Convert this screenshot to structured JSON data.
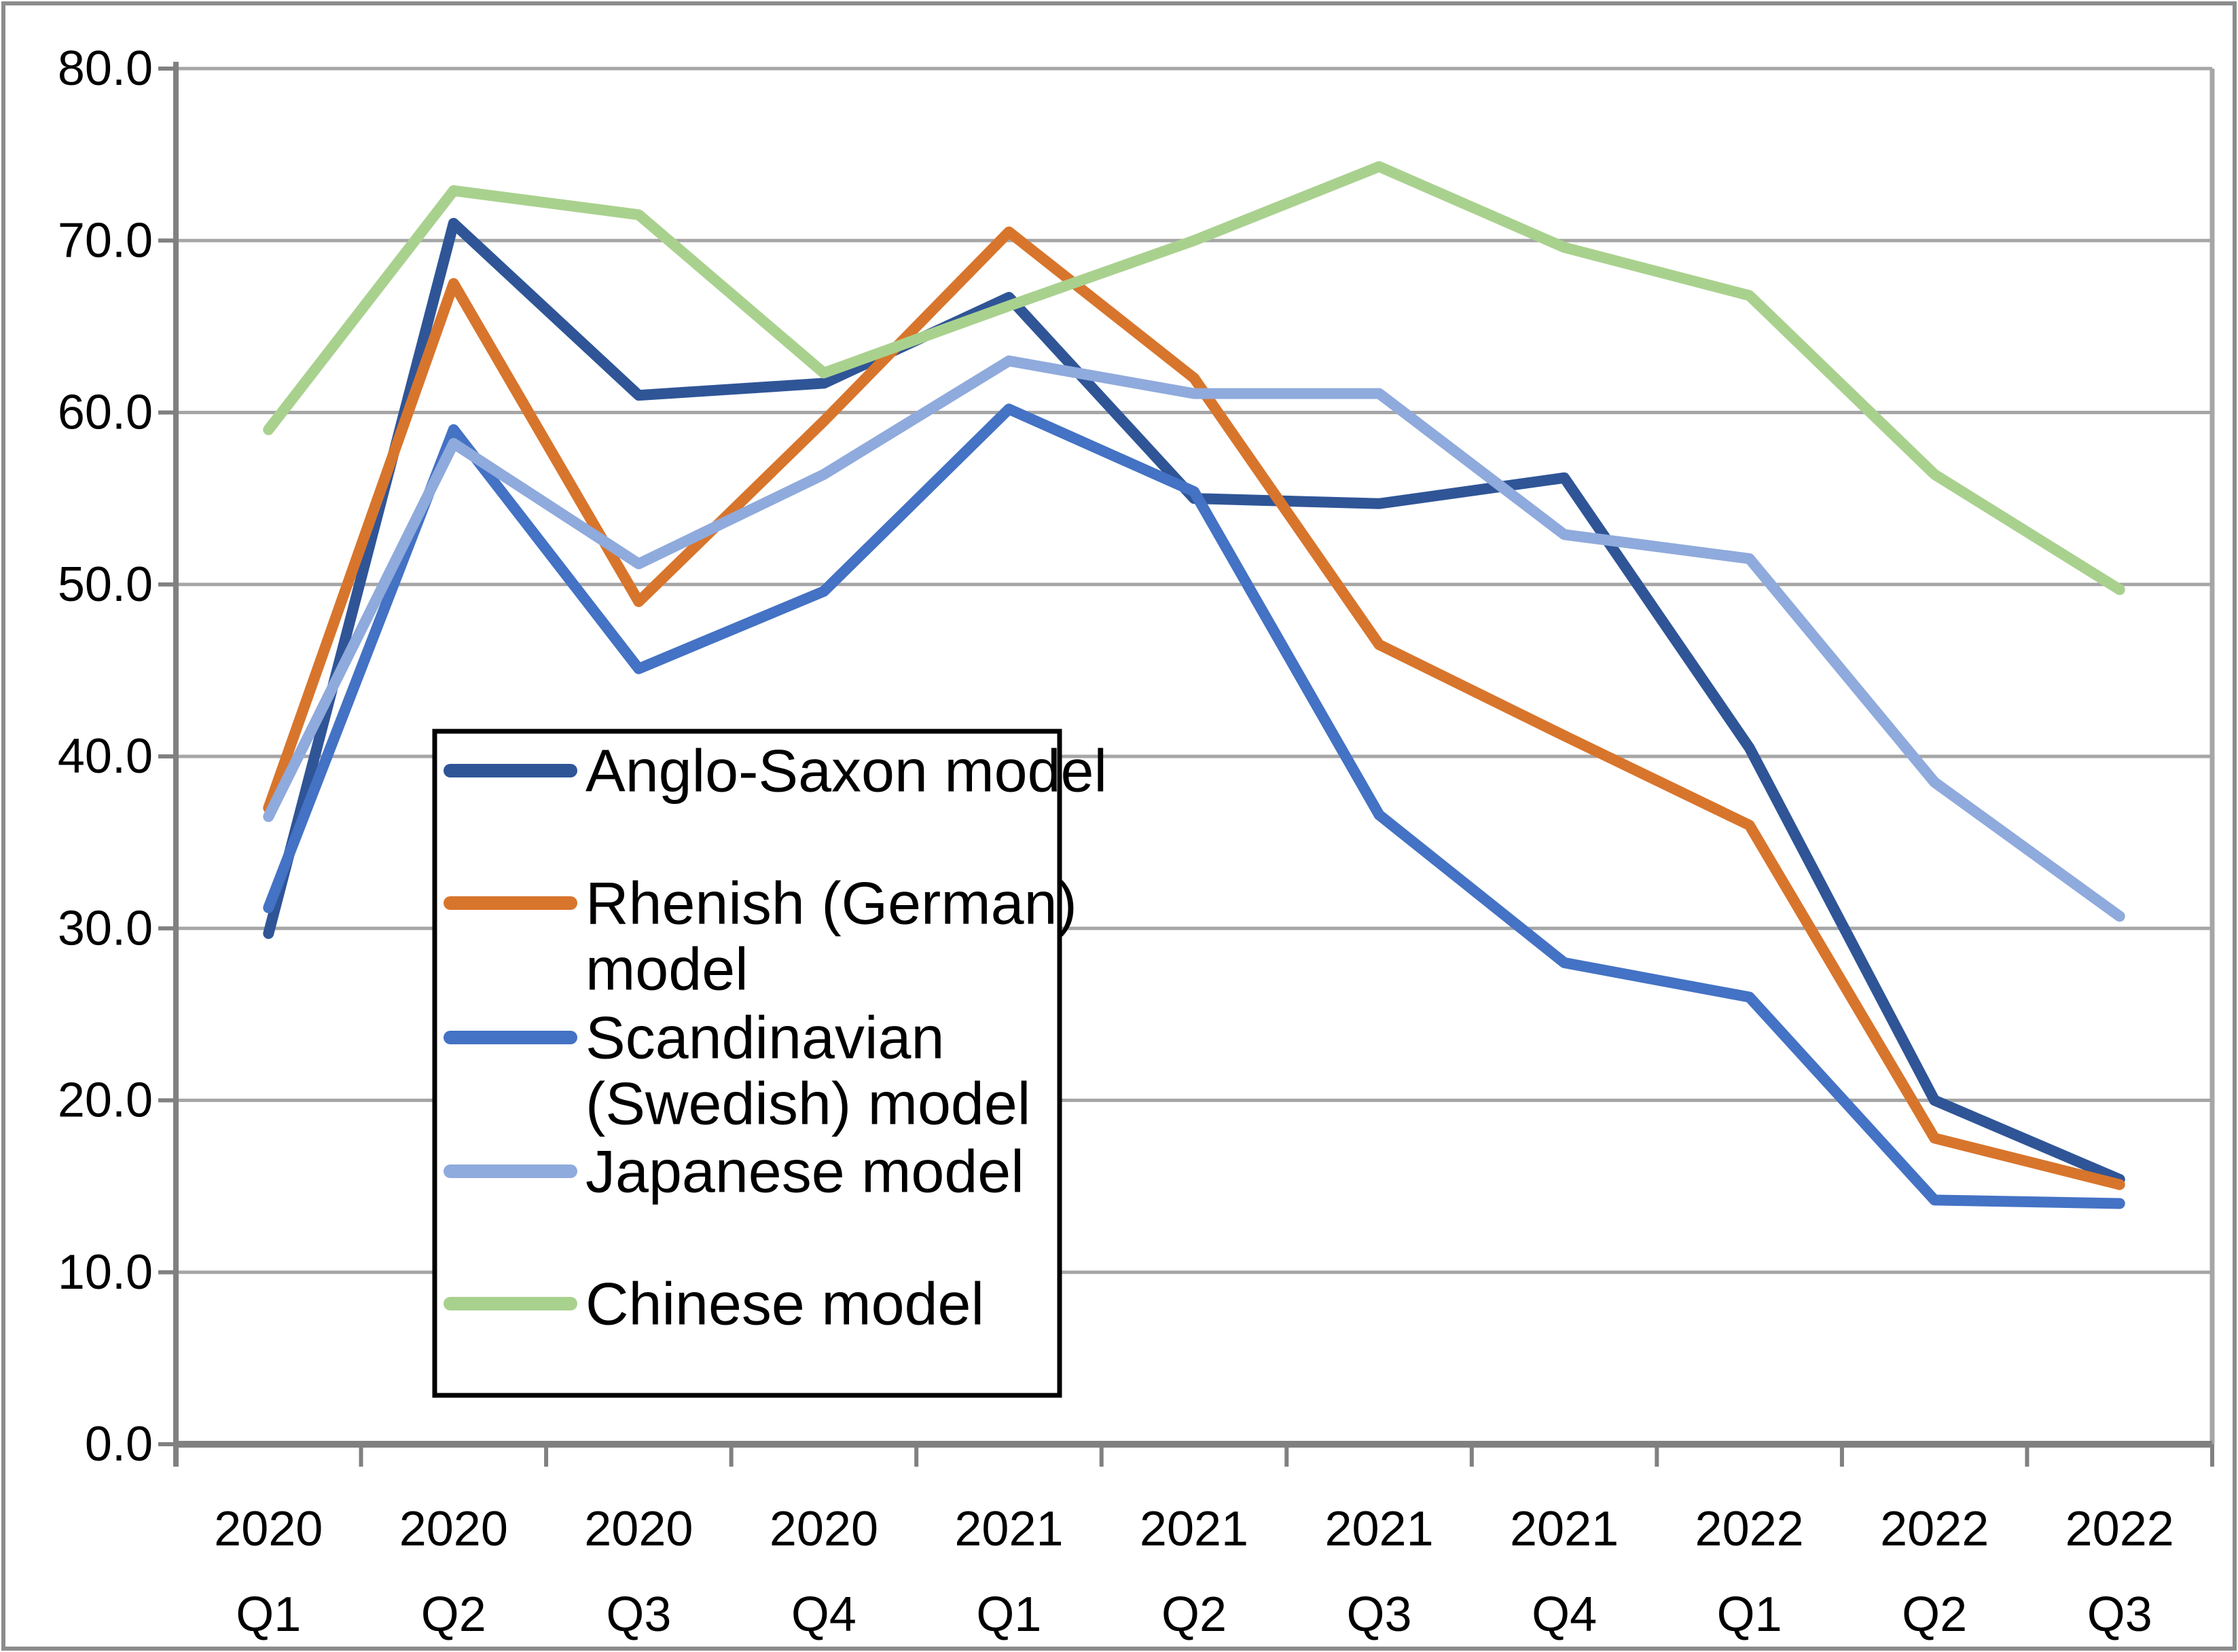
{
  "chart_data": {
    "type": "line",
    "title": "",
    "xlabel": "",
    "ylabel": "",
    "ylim": [
      0,
      80
    ],
    "ytick_step": 10,
    "grid": true,
    "legend_position": "boxed-middle-left",
    "ytick_labels": [
      "0.0",
      "10.0",
      "20.0",
      "30.0",
      "40.0",
      "50.0",
      "60.0",
      "70.0",
      "80.0"
    ],
    "categories": [
      {
        "year": "2020",
        "quarter": "Q1"
      },
      {
        "year": "2020",
        "quarter": "Q2"
      },
      {
        "year": "2020",
        "quarter": "Q3"
      },
      {
        "year": "2020",
        "quarter": "Q4"
      },
      {
        "year": "2021",
        "quarter": "Q1"
      },
      {
        "year": "2021",
        "quarter": "Q2"
      },
      {
        "year": "2021",
        "quarter": "Q3"
      },
      {
        "year": "2021",
        "quarter": "Q4"
      },
      {
        "year": "2022",
        "quarter": "Q1"
      },
      {
        "year": "2022",
        "quarter": "Q2"
      },
      {
        "year": "2022",
        "quarter": "Q3"
      }
    ],
    "series": [
      {
        "name": "Anglo-Saxon model",
        "label_lines": [
          "Anglo-Saxon model"
        ],
        "color": "#2F5597",
        "values": [
          29.7,
          71.0,
          61.0,
          61.7,
          66.7,
          55.0,
          54.7,
          56.2,
          40.5,
          20.0,
          15.4
        ]
      },
      {
        "name": "Rhenish (German) model",
        "label_lines": [
          "Rhenish (German)",
          "model"
        ],
        "color": "#D8752C",
        "values": [
          37.0,
          67.5,
          49.0,
          59.5,
          70.5,
          62.0,
          46.5,
          41.2,
          36.0,
          17.8,
          15.1
        ]
      },
      {
        "name": "Scandinavian (Swedish) model",
        "label_lines": [
          "Scandinavian",
          "(Swedish) model"
        ],
        "color": "#4472C4",
        "values": [
          31.2,
          59.0,
          45.1,
          49.6,
          60.2,
          55.4,
          36.6,
          28.0,
          26.0,
          14.2,
          14.0
        ]
      },
      {
        "name": "Japanese model",
        "label_lines": [
          "Japanese model"
        ],
        "color": "#8FAADC",
        "values": [
          36.5,
          58.2,
          51.2,
          56.4,
          63.0,
          61.1,
          61.1,
          52.9,
          51.5,
          38.5,
          30.7
        ]
      },
      {
        "name": "Chinese model",
        "label_lines": [
          "Chinese model"
        ],
        "color": "#A9D18E",
        "values": [
          59.0,
          72.9,
          71.5,
          62.3,
          66.2,
          70.0,
          74.3,
          69.6,
          66.8,
          56.4,
          49.7
        ]
      }
    ],
    "colors": {
      "gridline": "#A6A6A6",
      "axis": "#808080",
      "chart_border": "#8C8C8C",
      "legend_border": "#000000",
      "background": "#FFFFFF"
    }
  }
}
